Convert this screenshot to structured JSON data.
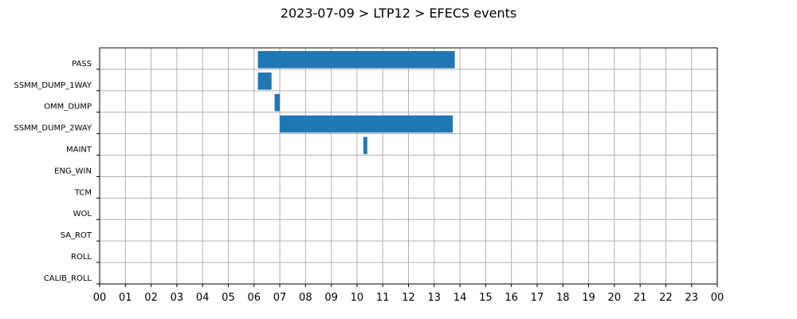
{
  "chart_data": {
    "type": "bar",
    "orientation": "horizontal",
    "title": "2023-07-09 > LTP12 > EFECS events",
    "xlabel": "",
    "ylabel": "",
    "xlim": [
      0,
      24
    ],
    "x_tick_labels": [
      "00",
      "01",
      "02",
      "03",
      "04",
      "05",
      "06",
      "07",
      "08",
      "09",
      "10",
      "11",
      "12",
      "13",
      "14",
      "15",
      "16",
      "17",
      "18",
      "19",
      "20",
      "21",
      "22",
      "23",
      "00"
    ],
    "categories": [
      "PASS",
      "SSMM_DUMP_1WAY",
      "OMM_DUMP",
      "SSMM_DUMP_2WAY",
      "MAINT",
      "ENG_WIN",
      "TCM",
      "WOL",
      "SA_ROT",
      "ROLL",
      "CALIB_ROLL"
    ],
    "bar_color": "#1f77b4",
    "grid": true,
    "events": [
      {
        "category": "PASS",
        "start_hour": 6.15,
        "end_hour": 13.8
      },
      {
        "category": "SSMM_DUMP_1WAY",
        "start_hour": 6.15,
        "end_hour": 6.68
      },
      {
        "category": "OMM_DUMP",
        "start_hour": 6.8,
        "end_hour": 7.0
      },
      {
        "category": "SSMM_DUMP_2WAY",
        "start_hour": 7.0,
        "end_hour": 13.72
      },
      {
        "category": "MAINT",
        "start_hour": 10.25,
        "end_hour": 10.4
      }
    ]
  }
}
